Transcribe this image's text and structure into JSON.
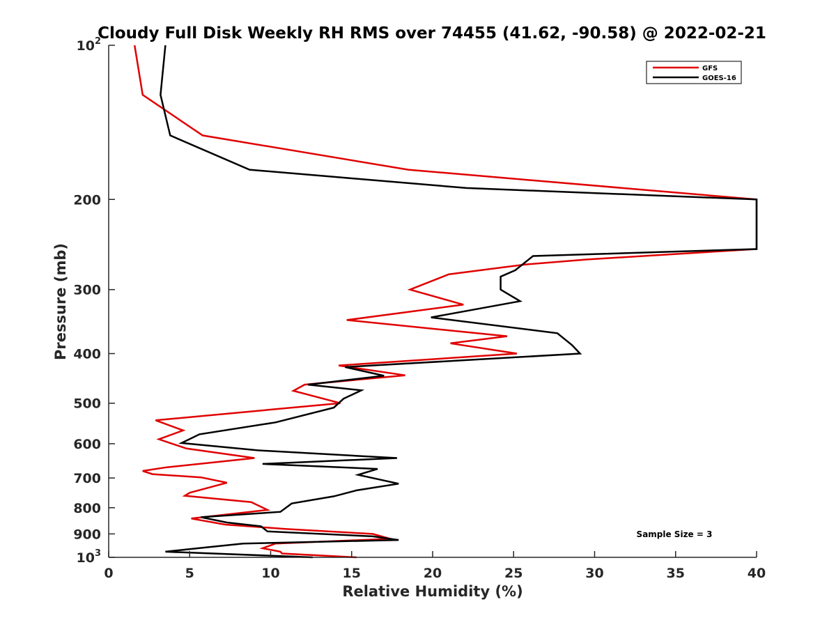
{
  "chart_data": {
    "type": "line",
    "title": "Cloudy Full Disk Weekly RH RMS over 74455 (41.62, -90.58) @ 2022-02-21",
    "xlabel": "Relative Humidity (%)",
    "ylabel": "Pressure (mb)",
    "xlim": [
      0,
      40
    ],
    "ylim": [
      100,
      1000
    ],
    "yscale": "log",
    "y_reversed": true,
    "grid": false,
    "legend_position": "top-right",
    "x_ticks": [
      0,
      5,
      10,
      15,
      20,
      25,
      30,
      35,
      40
    ],
    "x_tick_labels": [
      "0",
      "5",
      "10",
      "15",
      "20",
      "25",
      "30",
      "35",
      "40"
    ],
    "y_ticks": [
      100,
      200,
      300,
      400,
      500,
      600,
      700,
      800,
      900,
      1000
    ],
    "y_tick_labels": [
      {
        "base": "10",
        "exp": "2"
      },
      {
        "base": "200",
        "exp": ""
      },
      {
        "base": "300",
        "exp": ""
      },
      {
        "base": "400",
        "exp": ""
      },
      {
        "base": "500",
        "exp": ""
      },
      {
        "base": "600",
        "exp": ""
      },
      {
        "base": "700",
        "exp": ""
      },
      {
        "base": "800",
        "exp": ""
      },
      {
        "base": "900",
        "exp": ""
      },
      {
        "base": "10",
        "exp": "3"
      }
    ],
    "annotation": "Sample Size = 3",
    "series": [
      {
        "name": "GFS",
        "color": "#e00000",
        "points": [
          [
            1.6,
            100
          ],
          [
            2.1,
            125
          ],
          [
            5.8,
            150
          ],
          [
            18.5,
            175
          ],
          [
            40,
            200
          ],
          [
            40,
            250
          ],
          [
            29.5,
            262
          ],
          [
            25.7,
            268
          ],
          [
            21.0,
            280
          ],
          [
            18.6,
            300
          ],
          [
            21.9,
            321
          ],
          [
            14.7,
            344
          ],
          [
            24.6,
            370
          ],
          [
            21.1,
            382
          ],
          [
            25.2,
            400
          ],
          [
            14.2,
            422
          ],
          [
            18.3,
            441
          ],
          [
            12.1,
            460
          ],
          [
            11.4,
            473
          ],
          [
            14.3,
            500
          ],
          [
            2.9,
            540
          ],
          [
            4.6,
            565
          ],
          [
            3.1,
            588
          ],
          [
            4.8,
            613
          ],
          [
            9.0,
            640
          ],
          [
            3.6,
            667
          ],
          [
            2.1,
            678
          ],
          [
            2.7,
            688
          ],
          [
            5.7,
            698
          ],
          [
            7.3,
            715
          ],
          [
            5.0,
            748
          ],
          [
            4.7,
            758
          ],
          [
            8.8,
            780
          ],
          [
            9.8,
            808
          ],
          [
            5.1,
            840
          ],
          [
            7.2,
            863
          ],
          [
            10.9,
            880
          ],
          [
            16.3,
            900
          ],
          [
            17.4,
            920
          ],
          [
            10.3,
            940
          ],
          [
            9.5,
            960
          ],
          [
            10.6,
            975
          ],
          [
            10.7,
            983
          ],
          [
            15.3,
            1000
          ]
        ]
      },
      {
        "name": "GOES-16",
        "color": "#000000",
        "points": [
          [
            3.5,
            100
          ],
          [
            3.2,
            125
          ],
          [
            3.8,
            150
          ],
          [
            8.7,
            175
          ],
          [
            22.1,
            190
          ],
          [
            40,
            200
          ],
          [
            40,
            250
          ],
          [
            26.2,
            258
          ],
          [
            25.1,
            275
          ],
          [
            24.2,
            283
          ],
          [
            24.2,
            300
          ],
          [
            25.4,
            316
          ],
          [
            19.9,
            340
          ],
          [
            27.7,
            365
          ],
          [
            28.6,
            385
          ],
          [
            29.1,
            400
          ],
          [
            14.6,
            425
          ],
          [
            17.0,
            442
          ],
          [
            12.3,
            460
          ],
          [
            15.6,
            472
          ],
          [
            14.5,
            490
          ],
          [
            13.9,
            510
          ],
          [
            10.3,
            545
          ],
          [
            5.6,
            575
          ],
          [
            4.5,
            598
          ],
          [
            9.2,
            618
          ],
          [
            17.8,
            640
          ],
          [
            9.5,
            657
          ],
          [
            16.6,
            672
          ],
          [
            15.4,
            690
          ],
          [
            17.9,
            718
          ],
          [
            15.3,
            740
          ],
          [
            13.9,
            760
          ],
          [
            11.3,
            785
          ],
          [
            10.6,
            815
          ],
          [
            5.7,
            835
          ],
          [
            7.3,
            855
          ],
          [
            9.4,
            870
          ],
          [
            9.8,
            890
          ],
          [
            16.3,
            910
          ],
          [
            17.9,
            925
          ],
          [
            8.3,
            940
          ],
          [
            5.8,
            958
          ],
          [
            3.5,
            975
          ],
          [
            12.6,
            1000
          ]
        ]
      }
    ]
  }
}
